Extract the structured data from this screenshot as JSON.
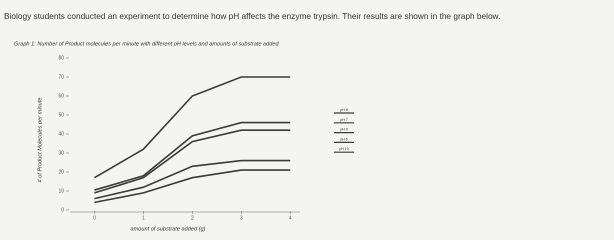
{
  "question": "Biology students conducted an experiment to determine how pH affects the enzyme trypsin.  Their results are shown in the graph below.",
  "chart_data": {
    "type": "line",
    "title": "Graph 1: Number of Product molecules per minute with different pH levels and amounts of substrate added",
    "x_label": "amount of substrate added (g)",
    "y_label": "# of Product Molecules per minute",
    "x": [
      0,
      1,
      2,
      3,
      4
    ],
    "xlim": [
      -0.5,
      4.2
    ],
    "xticks": [
      0,
      1,
      2,
      3,
      4
    ],
    "ylim": [
      0,
      80
    ],
    "yticks": [
      0,
      10,
      20,
      30,
      40,
      50,
      60,
      70,
      80
    ],
    "series": [
      {
        "name": "pH 8",
        "color": "#3a3a3a",
        "values": [
          17,
          32,
          60,
          70,
          70
        ]
      },
      {
        "name": "pH 7",
        "color": "#3a3a3a",
        "values": [
          10.5,
          18,
          39,
          46,
          46
        ]
      },
      {
        "name": "pH 9",
        "color": "#3a3a3a",
        "values": [
          9,
          17,
          36,
          42,
          42
        ]
      },
      {
        "name": "pH 6",
        "color": "#3a3a3a",
        "values": [
          6,
          12,
          23,
          26,
          26
        ]
      },
      {
        "name": "pH 10",
        "color": "#3a3a3a",
        "values": [
          4,
          9,
          17,
          21,
          21
        ]
      }
    ]
  }
}
